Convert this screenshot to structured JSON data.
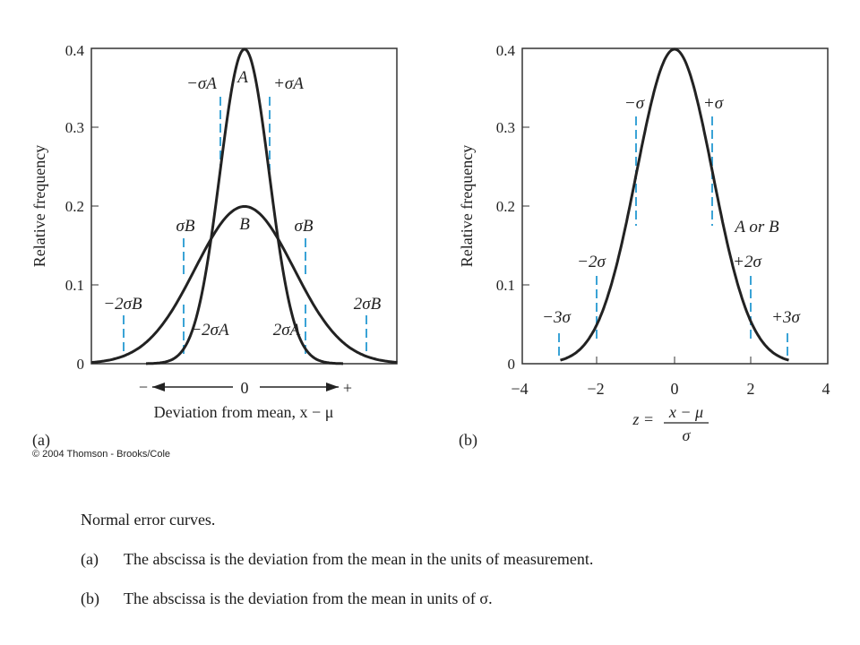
{
  "chart_data": [
    {
      "type": "line",
      "panel_label": "(a)",
      "ylabel": "Relative frequency",
      "xlabel": "Deviation from mean, x − μ",
      "ylim": [
        0,
        0.4
      ],
      "yticks": [
        "0",
        "0.1",
        "0.2",
        "0.3",
        "0.4"
      ],
      "xticks": [
        "−",
        "0",
        "+"
      ],
      "grid": false,
      "series": [
        {
          "name": "A",
          "sigma": 1,
          "values": [
            [
              -3,
              0.004
            ],
            [
              -2,
              0.054
            ],
            [
              -1,
              0.242
            ],
            [
              0,
              0.399
            ],
            [
              1,
              0.242
            ],
            [
              2,
              0.054
            ],
            [
              3,
              0.004
            ]
          ]
        },
        {
          "name": "B",
          "sigma": 2,
          "values": [
            [
              -5,
              0.009
            ],
            [
              -4,
              0.027
            ],
            [
              -2,
              0.121
            ],
            [
              0,
              0.199
            ],
            [
              2,
              0.121
            ],
            [
              4,
              0.027
            ],
            [
              5,
              0.009
            ]
          ]
        }
      ],
      "annotations": {
        "minus_sigma_A": "−σA",
        "plus_sigma_A": "+σA",
        "label_A": "A",
        "label_B": "B",
        "sigma_B_left": "σB",
        "sigma_B_right": "σB",
        "minus_2sigma_A": "−2σA",
        "plus_2sigma_A": "2σA",
        "minus_2sigma_B": "−2σB",
        "plus_2sigma_B": "2σB"
      }
    },
    {
      "type": "line",
      "panel_label": "(b)",
      "ylabel": "Relative frequency",
      "xlabel_prefix": "z =",
      "xlabel_numerator": "x − μ",
      "xlabel_denominator": "σ",
      "ylim": [
        0,
        0.4
      ],
      "xlim": [
        -4,
        4
      ],
      "yticks": [
        "0",
        "0.1",
        "0.2",
        "0.3",
        "0.4"
      ],
      "xticks": [
        "−4",
        "−2",
        "0",
        "2",
        "4"
      ],
      "grid": false,
      "series": [
        {
          "name": "A or B",
          "values": [
            [
              -3,
              0.004
            ],
            [
              -2,
              0.054
            ],
            [
              -1,
              0.242
            ],
            [
              0,
              0.399
            ],
            [
              1,
              0.242
            ],
            [
              2,
              0.054
            ],
            [
              3,
              0.004
            ]
          ]
        }
      ],
      "annotations": {
        "minus_sigma": "−σ",
        "plus_sigma": "+σ",
        "minus_2sigma": "−2σ",
        "plus_2sigma": "+2σ",
        "minus_3sigma": "−3σ",
        "plus_3sigma": "+3σ",
        "curve_label": "A or B"
      }
    }
  ],
  "copyright": "© 2004 Thomson - Brooks/Cole",
  "caption": {
    "title": "Normal error curves.",
    "items": [
      {
        "label": "(a)",
        "text": "The abscissa is the deviation from the mean in the units of measurement."
      },
      {
        "label": "(b)",
        "text": "The abscissa is the deviation from the mean in units of σ."
      }
    ]
  },
  "colors": {
    "curve": "#222222",
    "marker": "#3aa3d6",
    "axis": "#333333"
  }
}
